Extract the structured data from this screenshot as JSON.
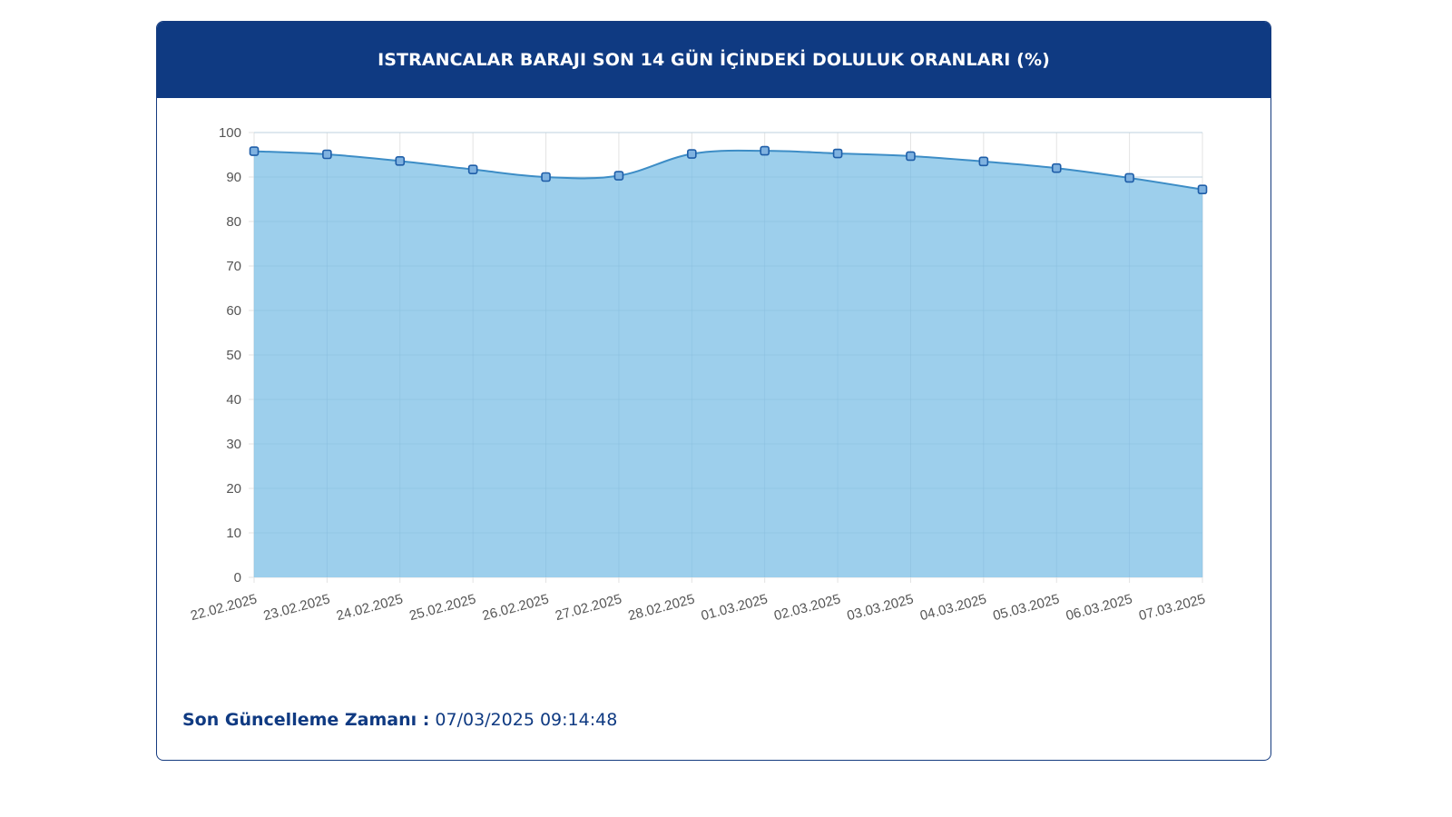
{
  "panel": {
    "title": "ISTRANCALAR BARAJI SON 14 GÜN İÇİNDEKİ DOLULUK ORANLARI (%)",
    "footer_label": "Son Güncelleme Zamanı :",
    "footer_value": " 07/03/2025 09:14:48"
  },
  "chart_data": {
    "type": "area",
    "title": "ISTRANCALAR BARAJI SON 14 GÜN İÇİNDEKİ DOLULUK ORANLARI (%)",
    "xlabel": "",
    "ylabel": "",
    "categories": [
      "22.02.2025",
      "23.02.2025",
      "24.02.2025",
      "25.02.2025",
      "26.02.2025",
      "27.02.2025",
      "28.02.2025",
      "01.03.2025",
      "02.03.2025",
      "03.03.2025",
      "04.03.2025",
      "05.03.2025",
      "06.03.2025",
      "07.03.2025"
    ],
    "series": [
      {
        "values": [
          95.8,
          95.1,
          93.6,
          91.7,
          90.0,
          90.3,
          95.2,
          95.9,
          95.3,
          94.7,
          93.5,
          92.0,
          89.8,
          87.2
        ]
      }
    ],
    "ylim": [
      0,
      100
    ],
    "yticks": [
      0,
      10,
      20,
      30,
      40,
      50,
      60,
      70,
      80,
      90,
      100
    ],
    "grid": true,
    "colors": {
      "fill": "#9dcfec",
      "line": "#3d8dc6",
      "marker_fill": "#7fb2e0",
      "marker_stroke": "#1f5ea8",
      "grid": "#e3e3e3",
      "grid_over_area": "#86bcdc"
    }
  }
}
